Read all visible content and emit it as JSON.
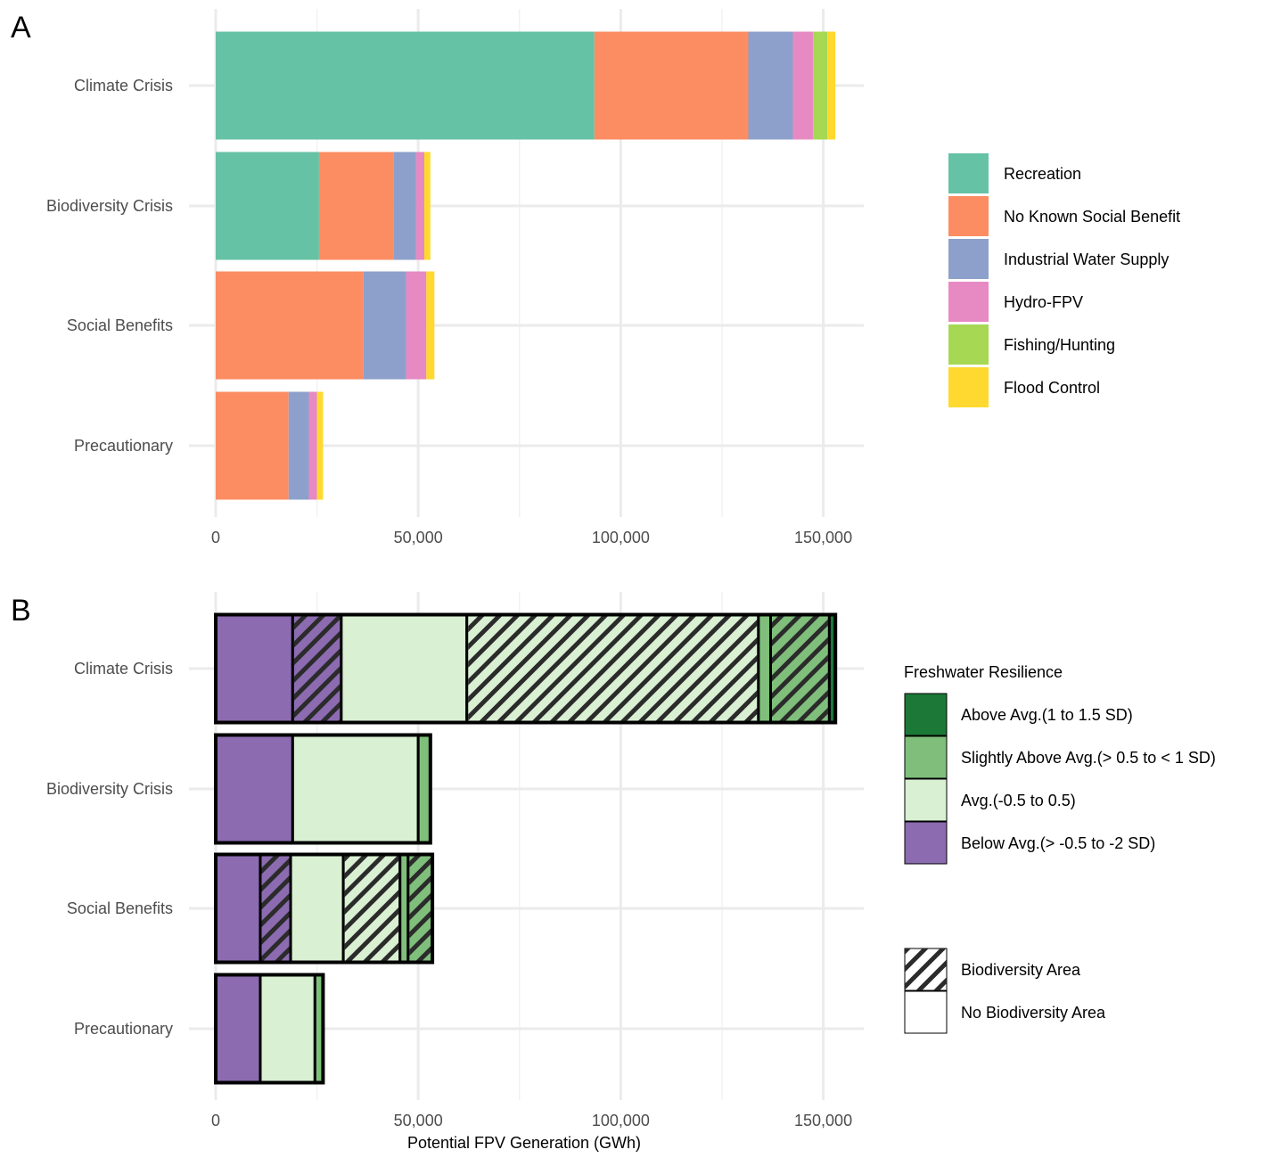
{
  "colors": {
    "recreation": "#66c2a5",
    "no_known_social_benefit": "#fc8d62",
    "industrial_water_supply": "#8da0cb",
    "hydro_fpv": "#e78ac3",
    "fishing_hunting": "#a6d854",
    "flood_control": "#ffd92f",
    "above_avg": "#1b7837",
    "slightly_above_avg": "#7fbf7b",
    "avg": "#d9f0d3",
    "below_avg": "#8c6bb1"
  },
  "chart_data": [
    {
      "panel": "A",
      "type": "bar",
      "orientation": "horizontal",
      "stacked": true,
      "categories": [
        "Climate Crisis",
        "Biodiversity Crisis",
        "Social Benefits",
        "Precautionary"
      ],
      "series": [
        {
          "name": "Recreation",
          "color_key": "recreation",
          "values": [
            93500,
            25500,
            0,
            0
          ]
        },
        {
          "name": "No Known Social Benefit",
          "color_key": "no_known_social_benefit",
          "values": [
            38000,
            18500,
            36500,
            18000
          ]
        },
        {
          "name": "Industrial Water Supply",
          "color_key": "industrial_water_supply",
          "values": [
            11000,
            5500,
            10500,
            5000
          ]
        },
        {
          "name": "Hydro-FPV",
          "color_key": "hydro_fpv",
          "values": [
            5000,
            2000,
            5000,
            2000
          ]
        },
        {
          "name": "Fishing/Hunting",
          "color_key": "fishing_hunting",
          "values": [
            3500,
            0,
            0,
            0
          ]
        },
        {
          "name": "Flood Control",
          "color_key": "flood_control",
          "values": [
            2000,
            1500,
            2000,
            1500
          ]
        }
      ],
      "xlim": [
        0,
        160000
      ],
      "xticks": [
        0,
        50000,
        100000,
        150000
      ],
      "xtick_labels": [
        "0",
        "50,000",
        "100,000",
        "150,000"
      ],
      "xlabel": "",
      "legend": {
        "title": "",
        "position": "right",
        "items": [
          "Recreation",
          "No Known Social Benefit",
          "Industrial Water Supply",
          "Hydro-FPV",
          "Fishing/Hunting",
          "Flood Control"
        ]
      }
    },
    {
      "panel": "B",
      "type": "bar",
      "orientation": "horizontal",
      "stacked": true,
      "categories": [
        "Climate Crisis",
        "Biodiversity Crisis",
        "Social Benefits",
        "Precautionary"
      ],
      "segments": [
        [
          {
            "resilience": "Below Avg.(> -0.5 to -2 SD)",
            "color_key": "below_avg",
            "biodiversity": false,
            "value": 19000
          },
          {
            "resilience": "Below Avg.(> -0.5 to -2 SD)",
            "color_key": "below_avg",
            "biodiversity": true,
            "value": 12000
          },
          {
            "resilience": "Avg.(-0.5 to 0.5)",
            "color_key": "avg",
            "biodiversity": false,
            "value": 31000
          },
          {
            "resilience": "Avg.(-0.5 to 0.5)",
            "color_key": "avg",
            "biodiversity": true,
            "value": 72000
          },
          {
            "resilience": "Slightly Above Avg.(> 0.5 to < 1 SD)",
            "color_key": "slightly_above_avg",
            "biodiversity": false,
            "value": 3000
          },
          {
            "resilience": "Slightly Above Avg.(> 0.5 to < 1 SD)",
            "color_key": "slightly_above_avg",
            "biodiversity": true,
            "value": 14500
          },
          {
            "resilience": "Above Avg.(1 to 1.5 SD)",
            "color_key": "above_avg",
            "biodiversity": false,
            "value": 1500
          }
        ],
        [
          {
            "resilience": "Below Avg.(> -0.5 to -2 SD)",
            "color_key": "below_avg",
            "biodiversity": false,
            "value": 19000
          },
          {
            "resilience": "Avg.(-0.5 to 0.5)",
            "color_key": "avg",
            "biodiversity": false,
            "value": 31000
          },
          {
            "resilience": "Slightly Above Avg.(> 0.5 to < 1 SD)",
            "color_key": "slightly_above_avg",
            "biodiversity": false,
            "value": 3000
          }
        ],
        [
          {
            "resilience": "Below Avg.(> -0.5 to -2 SD)",
            "color_key": "below_avg",
            "biodiversity": false,
            "value": 11000
          },
          {
            "resilience": "Below Avg.(> -0.5 to -2 SD)",
            "color_key": "below_avg",
            "biodiversity": true,
            "value": 7500
          },
          {
            "resilience": "Avg.(-0.5 to 0.5)",
            "color_key": "avg",
            "biodiversity": false,
            "value": 13000
          },
          {
            "resilience": "Avg.(-0.5 to 0.5)",
            "color_key": "avg",
            "biodiversity": true,
            "value": 14000
          },
          {
            "resilience": "Slightly Above Avg.(> 0.5 to < 1 SD)",
            "color_key": "slightly_above_avg",
            "biodiversity": false,
            "value": 2000
          },
          {
            "resilience": "Slightly Above Avg.(> 0.5 to < 1 SD)",
            "color_key": "slightly_above_avg",
            "biodiversity": true,
            "value": 6000
          }
        ],
        [
          {
            "resilience": "Below Avg.(> -0.5 to -2 SD)",
            "color_key": "below_avg",
            "biodiversity": false,
            "value": 11000
          },
          {
            "resilience": "Avg.(-0.5 to 0.5)",
            "color_key": "avg",
            "biodiversity": false,
            "value": 13500
          },
          {
            "resilience": "Slightly Above Avg.(> 0.5 to < 1 SD)",
            "color_key": "slightly_above_avg",
            "biodiversity": false,
            "value": 2000
          }
        ]
      ],
      "xlim": [
        0,
        160000
      ],
      "xticks": [
        0,
        50000,
        100000,
        150000
      ],
      "xtick_labels": [
        "0",
        "50,000",
        "100,000",
        "150,000"
      ],
      "xlabel": "Potential FPV Generation (GWh)",
      "legend": {
        "title": "Freshwater Resilience",
        "position": "right",
        "fill_items": [
          {
            "label": "Above Avg.(1 to 1.5 SD)",
            "color_key": "above_avg"
          },
          {
            "label": "Slightly Above Avg.(> 0.5 to < 1 SD)",
            "color_key": "slightly_above_avg"
          },
          {
            "label": "Avg.(-0.5 to 0.5)",
            "color_key": "avg"
          },
          {
            "label": "Below Avg.(> -0.5 to -2 SD)",
            "color_key": "below_avg"
          }
        ],
        "pattern_items": [
          {
            "label": "Biodiversity Area",
            "hatched": true
          },
          {
            "label": "No Biodiversity Area",
            "hatched": false
          }
        ]
      }
    }
  ],
  "panel_labels": [
    "A",
    "B"
  ]
}
